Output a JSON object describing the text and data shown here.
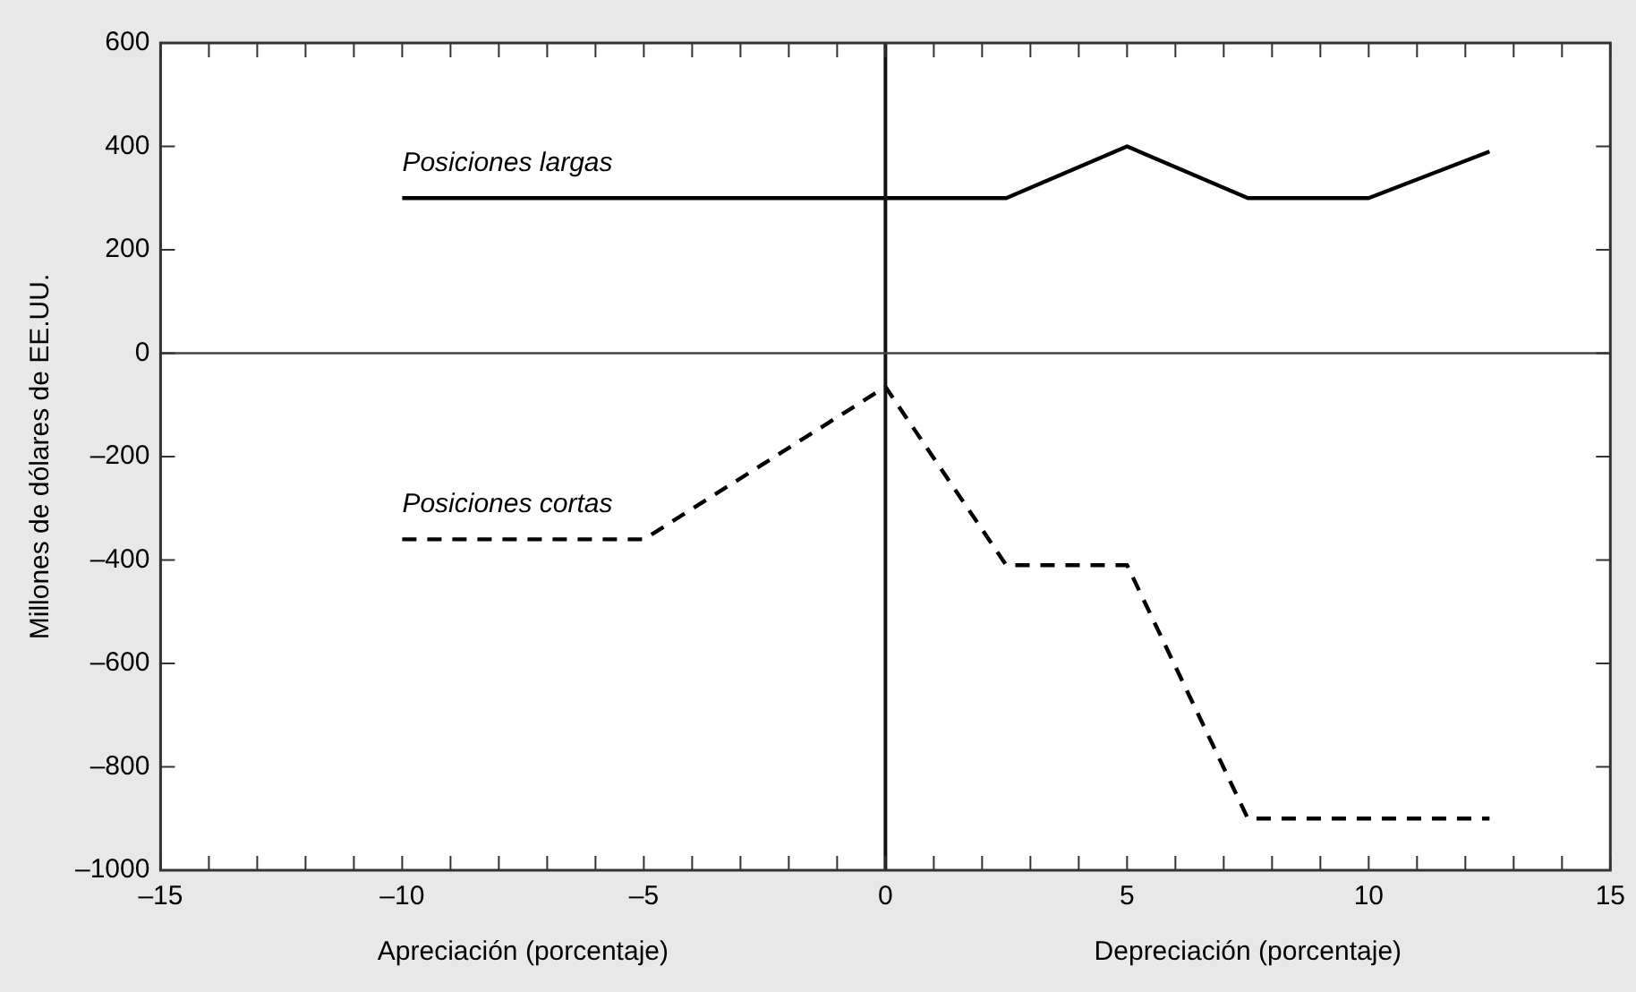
{
  "chart_data": {
    "type": "line",
    "ylabel": "Millones de dólares de EE.UU.",
    "annotations": [
      "Apreciación (porcentaje)",
      "Depreciación (porcentaje)"
    ],
    "series": [
      {
        "name": "Posiciones largas",
        "color": "#000000",
        "line_style": "solid",
        "x": [
          -10,
          -5,
          0,
          2.5,
          5,
          7.5,
          10,
          12.5
        ],
        "values": [
          300,
          300,
          300,
          300,
          400,
          300,
          300,
          390
        ]
      },
      {
        "name": "Posiciones cortas",
        "color": "#000000",
        "line_style": "dashed",
        "x": [
          -10,
          -5,
          0,
          2.5,
          5,
          7.5,
          10,
          12.5
        ],
        "values": [
          -360,
          -360,
          -65,
          -410,
          -410,
          -900,
          -900,
          -900
        ]
      }
    ],
    "xlim": [
      -15,
      15
    ],
    "xticks": [
      {
        "value": -15,
        "label": "–15"
      },
      {
        "value": -14,
        "label": null
      },
      {
        "value": -13,
        "label": null
      },
      {
        "value": -12,
        "label": null
      },
      {
        "value": -11,
        "label": null
      },
      {
        "value": -10,
        "label": "–10"
      },
      {
        "value": -9,
        "label": null
      },
      {
        "value": -8,
        "label": null
      },
      {
        "value": -7,
        "label": null
      },
      {
        "value": -6,
        "label": null
      },
      {
        "value": -5,
        "label": "–5"
      },
      {
        "value": -4,
        "label": null
      },
      {
        "value": -3,
        "label": null
      },
      {
        "value": -2,
        "label": null
      },
      {
        "value": -1,
        "label": null
      },
      0,
      {
        "value": 1,
        "label": null
      },
      {
        "value": 2,
        "label": null
      },
      {
        "value": 3,
        "label": null
      },
      {
        "value": 4,
        "label": null
      },
      5,
      {
        "value": 6,
        "label": null
      },
      {
        "value": 7,
        "label": null
      },
      {
        "value": 8,
        "label": null
      },
      {
        "value": 9,
        "label": null
      },
      10,
      {
        "value": 11,
        "label": null
      },
      {
        "value": 12,
        "label": null
      },
      {
        "value": 13,
        "label": null
      },
      {
        "value": 14,
        "label": null
      },
      15
    ],
    "ylim": [
      -1000,
      600
    ],
    "yticks": [
      {
        "value": -1000,
        "label": "–1000"
      },
      {
        "value": -800,
        "label": "–800"
      },
      {
        "value": -600,
        "label": "–600"
      },
      {
        "value": -400,
        "label": "–400"
      },
      {
        "value": -200,
        "label": "–200"
      },
      0,
      200,
      400,
      600
    ],
    "ref_lines": [
      {
        "axis": "x",
        "value": 0,
        "label": null
      },
      {
        "axis": "y",
        "value": 0,
        "label": null
      }
    ],
    "legend": false,
    "grid": false,
    "marker": "none"
  }
}
